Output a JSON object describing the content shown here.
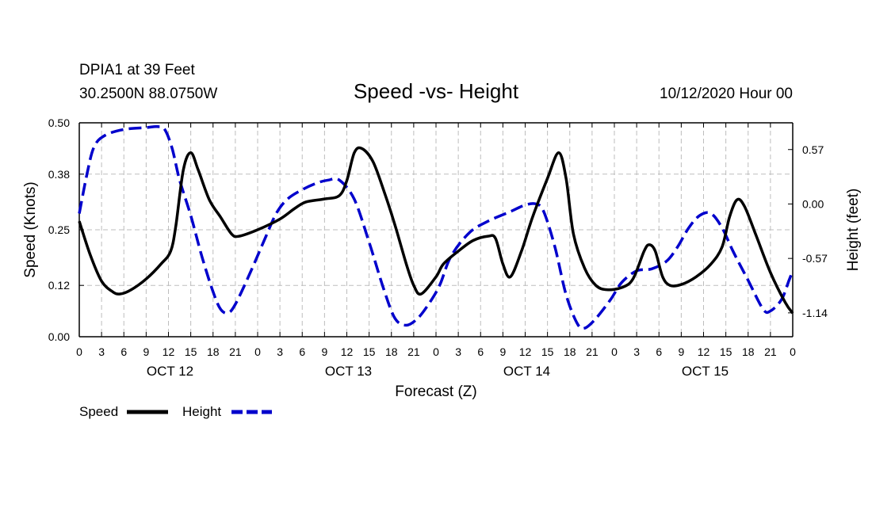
{
  "header": {
    "station": "DPIA1 at 39 Feet",
    "coords": "30.2500N 88.0750W",
    "title": "Speed -vs- Height",
    "run": "10/12/2020 Hour 00"
  },
  "chart_data": {
    "type": "line",
    "title": "Speed -vs- Height",
    "xlabel": "Forecast (Z)",
    "ylabel_left": "Speed (Knots)",
    "ylabel_right": "Height (feet)",
    "x_unit": "hours from 10/12/2020 00Z",
    "xlim": [
      0,
      96
    ],
    "ylim_left": [
      0,
      0.5
    ],
    "ylim_right": [
      -1.39,
      0.85
    ],
    "x_ticks": [
      0,
      3,
      6,
      9,
      12,
      15,
      18,
      21,
      24,
      27,
      30,
      33,
      36,
      39,
      42,
      45,
      48,
      51,
      54,
      57,
      60,
      63,
      66,
      69,
      72,
      75,
      78,
      81,
      84,
      87,
      90,
      93,
      96
    ],
    "x_tick_labels": [
      "0",
      "3",
      "6",
      "9",
      "12",
      "15",
      "18",
      "21",
      "0",
      "3",
      "6",
      "9",
      "12",
      "15",
      "18",
      "21",
      "0",
      "3",
      "6",
      "9",
      "12",
      "15",
      "18",
      "21",
      "0",
      "3",
      "6",
      "9",
      "12",
      "15",
      "18",
      "21",
      "0"
    ],
    "day_labels": [
      {
        "hour": 12,
        "label": "OCT 12"
      },
      {
        "hour": 36,
        "label": "OCT 13"
      },
      {
        "hour": 60,
        "label": "OCT 14"
      },
      {
        "hour": 84,
        "label": "OCT 15"
      }
    ],
    "y_left_ticks": [
      0.0,
      0.12,
      0.25,
      0.38,
      0.5
    ],
    "y_left_tick_labels": [
      "0.00",
      "0.12",
      "0.25",
      "0.38",
      "0.50"
    ],
    "y_right_ticks": [
      0.57,
      0.0,
      -0.57,
      -1.14
    ],
    "y_right_tick_labels": [
      "0.57",
      "0.00",
      "-0.57",
      "-1.14"
    ],
    "grid": true,
    "series": [
      {
        "name": "Speed",
        "axis": "left",
        "color": "#000000",
        "dash": "solid",
        "points": [
          [
            0,
            0.27
          ],
          [
            1.5,
            0.19
          ],
          [
            3,
            0.13
          ],
          [
            4.5,
            0.105
          ],
          [
            5.5,
            0.1
          ],
          [
            7,
            0.11
          ],
          [
            9,
            0.135
          ],
          [
            11,
            0.17
          ],
          [
            12.3,
            0.2
          ],
          [
            13,
            0.26
          ],
          [
            14,
            0.39
          ],
          [
            15,
            0.43
          ],
          [
            16,
            0.39
          ],
          [
            17.5,
            0.32
          ],
          [
            19,
            0.28
          ],
          [
            20.5,
            0.24
          ],
          [
            21.5,
            0.235
          ],
          [
            24,
            0.25
          ],
          [
            27,
            0.275
          ],
          [
            29,
            0.3
          ],
          [
            30.5,
            0.315
          ],
          [
            33,
            0.322
          ],
          [
            35,
            0.33
          ],
          [
            36,
            0.365
          ],
          [
            37,
            0.43
          ],
          [
            38,
            0.44
          ],
          [
            39.5,
            0.41
          ],
          [
            41,
            0.34
          ],
          [
            42.5,
            0.26
          ],
          [
            44,
            0.17
          ],
          [
            45,
            0.12
          ],
          [
            46,
            0.1
          ],
          [
            48,
            0.14
          ],
          [
            49,
            0.17
          ],
          [
            51,
            0.2
          ],
          [
            53,
            0.225
          ],
          [
            55,
            0.235
          ],
          [
            56,
            0.23
          ],
          [
            57,
            0.17
          ],
          [
            58,
            0.14
          ],
          [
            59.5,
            0.2
          ],
          [
            61,
            0.28
          ],
          [
            63,
            0.37
          ],
          [
            64.5,
            0.43
          ],
          [
            65.5,
            0.37
          ],
          [
            66.5,
            0.24
          ],
          [
            68,
            0.16
          ],
          [
            69.5,
            0.12
          ],
          [
            71,
            0.11
          ],
          [
            73,
            0.115
          ],
          [
            74.5,
            0.135
          ],
          [
            76,
            0.2
          ],
          [
            76.7,
            0.215
          ],
          [
            77.5,
            0.2
          ],
          [
            78.5,
            0.14
          ],
          [
            79.5,
            0.12
          ],
          [
            81,
            0.122
          ],
          [
            83,
            0.14
          ],
          [
            85,
            0.17
          ],
          [
            86.5,
            0.21
          ],
          [
            87.5,
            0.28
          ],
          [
            88.5,
            0.32
          ],
          [
            89.5,
            0.305
          ],
          [
            91,
            0.24
          ],
          [
            93,
            0.15
          ],
          [
            95,
            0.08
          ],
          [
            96,
            0.055
          ]
        ]
      },
      {
        "name": "Height",
        "axis": "right",
        "color": "#0000cc",
        "dash": "dashed",
        "points": [
          [
            0,
            -0.1
          ],
          [
            1,
            0.3
          ],
          [
            2,
            0.6
          ],
          [
            3.5,
            0.72
          ],
          [
            6,
            0.78
          ],
          [
            9,
            0.8
          ],
          [
            10.5,
            0.81
          ],
          [
            11.5,
            0.78
          ],
          [
            12.5,
            0.58
          ],
          [
            13.5,
            0.25
          ],
          [
            15,
            -0.12
          ],
          [
            16.5,
            -0.55
          ],
          [
            18,
            -0.92
          ],
          [
            19,
            -1.1
          ],
          [
            20,
            -1.14
          ],
          [
            21,
            -1.05
          ],
          [
            23,
            -0.72
          ],
          [
            25,
            -0.36
          ],
          [
            26.5,
            -0.1
          ],
          [
            28,
            0.05
          ],
          [
            30,
            0.15
          ],
          [
            32,
            0.22
          ],
          [
            33.5,
            0.25
          ],
          [
            35,
            0.25
          ],
          [
            37,
            0.05
          ],
          [
            39,
            -0.4
          ],
          [
            41,
            -0.9
          ],
          [
            42.5,
            -1.2
          ],
          [
            44,
            -1.27
          ],
          [
            45.5,
            -1.2
          ],
          [
            47,
            -1.05
          ],
          [
            48.5,
            -0.85
          ],
          [
            50,
            -0.55
          ],
          [
            52.5,
            -0.3
          ],
          [
            55,
            -0.18
          ],
          [
            58,
            -0.08
          ],
          [
            60,
            -0.01
          ],
          [
            61.5,
            0.0
          ],
          [
            62.5,
            -0.08
          ],
          [
            64,
            -0.45
          ],
          [
            65.5,
            -0.95
          ],
          [
            67,
            -1.25
          ],
          [
            68,
            -1.3
          ],
          [
            69.5,
            -1.2
          ],
          [
            71.5,
            -1.0
          ],
          [
            73,
            -0.82
          ],
          [
            75,
            -0.7
          ],
          [
            77,
            -0.68
          ],
          [
            79,
            -0.6
          ],
          [
            80.5,
            -0.45
          ],
          [
            82,
            -0.25
          ],
          [
            83.5,
            -0.12
          ],
          [
            85,
            -0.1
          ],
          [
            86.5,
            -0.25
          ],
          [
            88,
            -0.5
          ],
          [
            90,
            -0.8
          ],
          [
            92,
            -1.1
          ],
          [
            93,
            -1.12
          ],
          [
            94.5,
            -1.0
          ],
          [
            95.5,
            -0.8
          ],
          [
            96,
            -0.7
          ]
        ]
      }
    ],
    "legend": {
      "position": "bottom-left",
      "items": [
        {
          "label": "Speed",
          "color": "#000000",
          "dash": "solid"
        },
        {
          "label": "Height",
          "color": "#0000cc",
          "dash": "dashed"
        }
      ]
    }
  }
}
